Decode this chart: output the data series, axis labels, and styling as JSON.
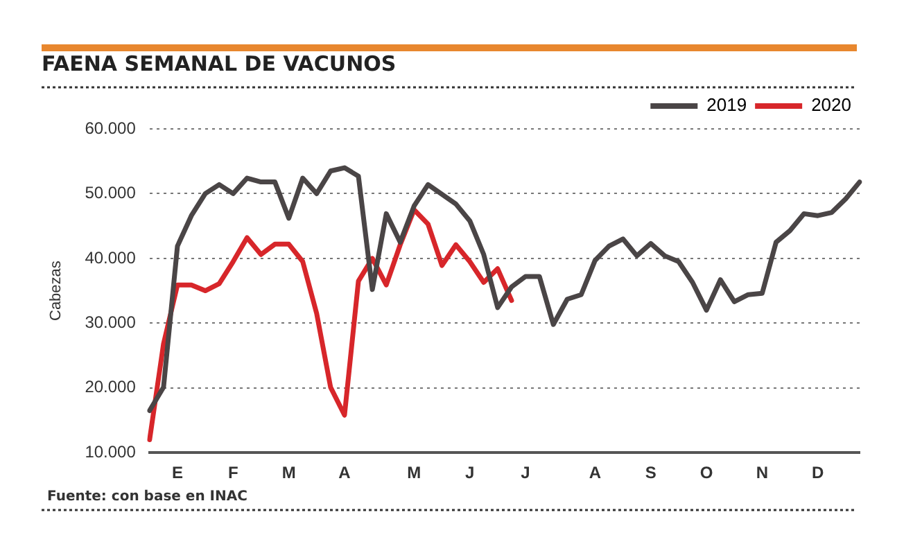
{
  "chart_data": {
    "type": "line",
    "title": "FAENA SEMANAL DE VACUNOS",
    "ylabel": "Cabezas",
    "categories": [
      null,
      null,
      "E",
      null,
      null,
      null,
      "F",
      null,
      null,
      null,
      "M",
      null,
      null,
      null,
      "A",
      null,
      null,
      null,
      null,
      "M",
      null,
      null,
      null,
      "J",
      null,
      null,
      null,
      "J",
      null,
      null,
      null,
      null,
      "A",
      null,
      null,
      null,
      "S",
      null,
      null,
      null,
      "O",
      null,
      null,
      null,
      "N",
      null,
      null,
      null,
      "D",
      null,
      null,
      null
    ],
    "series": [
      {
        "name": "2019",
        "color": "#4a4546",
        "values": [
          16500,
          20100,
          41900,
          46600,
          50000,
          51400,
          50000,
          52400,
          51800,
          51800,
          46200,
          52400,
          50000,
          53500,
          54000,
          52700,
          35200,
          46900,
          42500,
          48100,
          51400,
          49900,
          48400,
          45800,
          40600,
          32400,
          35600,
          37200,
          37200,
          29800,
          33700,
          34400,
          39700,
          41900,
          43000,
          40400,
          42300,
          40400,
          39500,
          36300,
          32000,
          36700,
          33300,
          34400,
          34600,
          42500,
          44300,
          46900,
          46600,
          47100,
          49200,
          51800
        ]
      },
      {
        "name": "2020",
        "color": "#d7262a",
        "values": [
          12000,
          26800,
          35900,
          35900,
          35000,
          36100,
          39500,
          43200,
          40600,
          42200,
          42200,
          39500,
          31500,
          20100,
          15800,
          36500,
          40000,
          35900,
          42100,
          47500,
          45300,
          38900,
          42100,
          39500,
          36300,
          38400,
          33500,
          null,
          null,
          null,
          null,
          null,
          null,
          null,
          null,
          null,
          null,
          null,
          null,
          null,
          null,
          null,
          null,
          null,
          null,
          null,
          null,
          null,
          null,
          null,
          null,
          null
        ]
      }
    ],
    "ylim": [
      10000,
      60000
    ],
    "yticks": [
      {
        "value": 10000,
        "label": "10.000"
      },
      {
        "value": 20000,
        "label": "20.000"
      },
      {
        "value": 30000,
        "label": "30.000"
      },
      {
        "value": 40000,
        "label": "40.000"
      },
      {
        "value": 50000,
        "label": "50.000"
      },
      {
        "value": 60000,
        "label": "60.000"
      }
    ],
    "grid": "y",
    "legend": "top right",
    "marker": "none",
    "line_style": "solid",
    "annotations": [
      "Fuente: con base en INAC"
    ]
  }
}
